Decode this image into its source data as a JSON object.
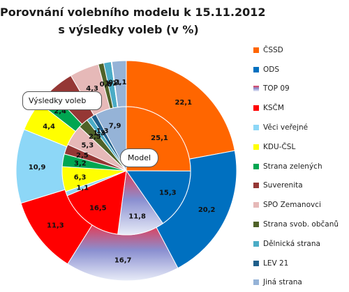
{
  "chart_data": {
    "type": "donut",
    "title": "Porovnání volebního modelu k 15.11.2012",
    "subtitle": "s výsledky voleb (v %)",
    "categories": [
      "ČSSD",
      "ODS",
      "TOP 09",
      "KSČM",
      "Věci veřejné",
      "KDU-ČSL",
      "Strana zelených",
      "Suverenita",
      "SPO Zemanovci",
      "Strana svob. občanů",
      "Dělnická strana",
      "LEV 21",
      "Jiná strana"
    ],
    "colors": [
      "#ff6600",
      "#0070c0",
      "#c0504d",
      "#ff0000",
      "#8dd7f7",
      "#ffff00",
      "#00a651",
      "#953735",
      "#e6b9b8",
      "#4f6228",
      "#4bacc6",
      "#1f5f8b",
      "#95b3d7"
    ],
    "series": [
      {
        "name": "Výsledky voleb",
        "ring": "outer",
        "values": [
          22.1,
          20.2,
          16.7,
          11.3,
          10.9,
          4.4,
          2.4,
          3.7,
          4.3,
          0.8,
          1.1,
          0.1,
          2.1
        ],
        "labels": [
          "22,1",
          "20,2",
          "16,7",
          "11,3",
          "10,9",
          "4,4",
          "2,4",
          "3,7",
          "4,3",
          "0,8",
          "1,1",
          "0,1",
          "2,1"
        ]
      },
      {
        "name": "Model",
        "ring": "inner",
        "values": [
          25.1,
          15.3,
          11.8,
          16.5,
          1.1,
          6.3,
          3.2,
          2.5,
          5.3,
          2.5,
          1.3,
          1.3,
          7.9
        ],
        "labels": [
          "25,1",
          "15,3",
          "11,8",
          "16,5",
          "1,1",
          "6,3",
          "3,2",
          "2,5",
          "5,3",
          "2,5",
          "1,3",
          "1,3",
          "7,9"
        ]
      }
    ],
    "legend_position": "right",
    "start_angle_deg": 270,
    "direction": "clockwise"
  }
}
